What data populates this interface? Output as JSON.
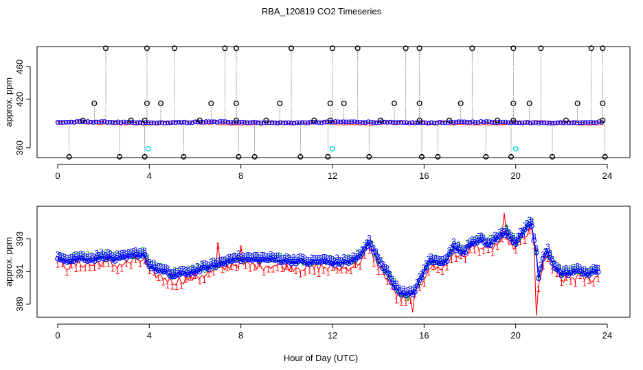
{
  "title": "RBA_120819  CO2 Timeseries",
  "xlabel": "Hour of Day (UTC)",
  "colors": {
    "black": "#000000",
    "red": "#ff0000",
    "green": "#00aa00",
    "blue": "#0000ff",
    "cyan": "#00dddd"
  },
  "chart_data": [
    {
      "type": "scatter",
      "name": "raw-timeseries",
      "ylabel": "approx. ppm",
      "xlim": [
        0,
        24
      ],
      "ylim": [
        348,
        485
      ],
      "x_ticks": [
        0,
        4,
        8,
        12,
        16,
        20,
        24
      ],
      "y_ticks": [
        360,
        420,
        460
      ],
      "y_tick_labels": [
        "360",
        "420",
        "460"
      ],
      "baseline": 391.5,
      "outliers_high": [
        {
          "x": 2.1,
          "y": 483
        },
        {
          "x": 3.9,
          "y": 483
        },
        {
          "x": 5.1,
          "y": 483
        },
        {
          "x": 7.3,
          "y": 483
        },
        {
          "x": 7.8,
          "y": 483
        },
        {
          "x": 10.2,
          "y": 483
        },
        {
          "x": 12.0,
          "y": 483
        },
        {
          "x": 13.1,
          "y": 483
        },
        {
          "x": 15.2,
          "y": 483
        },
        {
          "x": 15.8,
          "y": 483
        },
        {
          "x": 18.1,
          "y": 483
        },
        {
          "x": 19.9,
          "y": 483
        },
        {
          "x": 21.1,
          "y": 483
        },
        {
          "x": 23.3,
          "y": 483
        },
        {
          "x": 23.8,
          "y": 483
        }
      ],
      "outliers_mid": [
        {
          "x": 1.6,
          "y": 415
        },
        {
          "x": 3.9,
          "y": 415
        },
        {
          "x": 4.5,
          "y": 415
        },
        {
          "x": 6.7,
          "y": 415
        },
        {
          "x": 7.8,
          "y": 415
        },
        {
          "x": 9.7,
          "y": 415
        },
        {
          "x": 11.9,
          "y": 415
        },
        {
          "x": 12.5,
          "y": 415
        },
        {
          "x": 14.7,
          "y": 415
        },
        {
          "x": 15.8,
          "y": 415
        },
        {
          "x": 17.6,
          "y": 415
        },
        {
          "x": 19.9,
          "y": 415
        },
        {
          "x": 20.6,
          "y": 415
        },
        {
          "x": 22.7,
          "y": 415
        },
        {
          "x": 23.8,
          "y": 415
        }
      ],
      "outliers_low": [
        {
          "x": 0.5,
          "y": 349
        },
        {
          "x": 2.7,
          "y": 349
        },
        {
          "x": 3.8,
          "y": 349
        },
        {
          "x": 5.5,
          "y": 349
        },
        {
          "x": 7.9,
          "y": 349
        },
        {
          "x": 8.6,
          "y": 349
        },
        {
          "x": 10.6,
          "y": 349
        },
        {
          "x": 11.8,
          "y": 349
        },
        {
          "x": 13.6,
          "y": 349
        },
        {
          "x": 15.9,
          "y": 349
        },
        {
          "x": 16.6,
          "y": 349
        },
        {
          "x": 18.7,
          "y": 349
        },
        {
          "x": 19.8,
          "y": 349
        },
        {
          "x": 21.6,
          "y": 349
        },
        {
          "x": 23.9,
          "y": 349
        }
      ],
      "outliers_near": [
        {
          "x": 1.1,
          "y": 394
        },
        {
          "x": 3.2,
          "y": 394
        },
        {
          "x": 3.8,
          "y": 394
        },
        {
          "x": 6.2,
          "y": 394
        },
        {
          "x": 7.8,
          "y": 394
        },
        {
          "x": 9.1,
          "y": 394
        },
        {
          "x": 11.2,
          "y": 394
        },
        {
          "x": 11.9,
          "y": 394
        },
        {
          "x": 14.1,
          "y": 394
        },
        {
          "x": 15.8,
          "y": 394
        },
        {
          "x": 17.1,
          "y": 394
        },
        {
          "x": 19.2,
          "y": 394
        },
        {
          "x": 19.9,
          "y": 394
        },
        {
          "x": 22.2,
          "y": 394
        },
        {
          "x": 23.8,
          "y": 394
        }
      ],
      "cyan_points": [
        {
          "x": 3.95,
          "y": 359
        },
        {
          "x": 12.0,
          "y": 359
        },
        {
          "x": 20.0,
          "y": 359
        }
      ]
    },
    {
      "type": "line",
      "name": "smoothed-timeseries",
      "ylabel": "approx. ppm",
      "xlim": [
        0,
        24
      ],
      "ylim": [
        388.2,
        395.0
      ],
      "x_ticks": [
        0,
        4,
        8,
        12,
        16,
        20,
        24
      ],
      "y_ticks": [
        389,
        391,
        393
      ],
      "y_tick_labels": [
        "389",
        "391",
        "393"
      ],
      "anchors": [
        [
          0,
          391.8
        ],
        [
          0.5,
          391.5
        ],
        [
          1.0,
          391.7
        ],
        [
          1.5,
          391.6
        ],
        [
          2.0,
          391.8
        ],
        [
          2.5,
          391.6
        ],
        [
          3.0,
          391.7
        ],
        [
          3.5,
          391.9
        ],
        [
          3.8,
          391.9
        ],
        [
          4.0,
          391.2
        ],
        [
          4.3,
          391.0
        ],
        [
          4.7,
          390.8
        ],
        [
          5.0,
          390.6
        ],
        [
          5.4,
          390.7
        ],
        [
          5.8,
          390.8
        ],
        [
          6.3,
          391.0
        ],
        [
          6.8,
          391.2
        ],
        [
          7.3,
          391.4
        ],
        [
          7.7,
          391.7
        ],
        [
          8.0,
          391.6
        ],
        [
          8.5,
          391.6
        ],
        [
          9.0,
          391.6
        ],
        [
          9.5,
          391.6
        ],
        [
          10.0,
          391.5
        ],
        [
          10.5,
          391.5
        ],
        [
          11.0,
          391.4
        ],
        [
          11.5,
          391.5
        ],
        [
          12.0,
          391.4
        ],
        [
          12.5,
          391.4
        ],
        [
          13.0,
          391.6
        ],
        [
          13.3,
          392.0
        ],
        [
          13.6,
          392.6
        ],
        [
          13.9,
          391.8
        ],
        [
          14.2,
          391.2
        ],
        [
          14.5,
          390.5
        ],
        [
          14.8,
          389.8
        ],
        [
          15.2,
          389.4
        ],
        [
          15.5,
          389.5
        ],
        [
          15.9,
          390.5
        ],
        [
          16.2,
          391.5
        ],
        [
          16.6,
          391.4
        ],
        [
          17.0,
          391.6
        ],
        [
          17.3,
          392.4
        ],
        [
          17.7,
          392.0
        ],
        [
          18.0,
          392.6
        ],
        [
          18.4,
          392.8
        ],
        [
          18.8,
          392.5
        ],
        [
          19.2,
          392.9
        ],
        [
          19.6,
          393.3
        ],
        [
          20.0,
          392.6
        ],
        [
          20.3,
          393.2
        ],
        [
          20.5,
          393.5
        ],
        [
          20.7,
          393.7
        ],
        [
          20.9,
          392.0
        ],
        [
          21.0,
          390.5
        ],
        [
          21.2,
          391.6
        ],
        [
          21.4,
          392.1
        ],
        [
          21.7,
          391.2
        ],
        [
          22.0,
          390.7
        ],
        [
          22.4,
          390.8
        ],
        [
          22.8,
          390.9
        ],
        [
          23.2,
          390.7
        ],
        [
          23.6,
          390.9
        ],
        [
          23.8,
          390.9
        ]
      ],
      "series": [
        {
          "name": "1",
          "color": "#ff0000",
          "offset": -0.2,
          "amp": 0.55,
          "dips": [
            [
              15.5,
              388.5
            ],
            [
              20.9,
              388.3
            ]
          ],
          "peaks": [
            [
              19.5,
              394.6
            ],
            [
              7.0,
              392.8
            ],
            [
              8.0,
              392.6
            ]
          ]
        },
        {
          "name": "2",
          "color": "#00aa00",
          "offset": 0.05,
          "amp": 0.3,
          "dips": [
            [
              15.3,
              389.2
            ]
          ],
          "peaks": [
            [
              19.6,
              393.9
            ]
          ]
        },
        {
          "name": "3",
          "color": "#0000ff",
          "offset": 0.1,
          "amp": 0.25,
          "dips": [
            [
              15.4,
              389.7
            ]
          ],
          "peaks": [
            [
              20.6,
              393.9
            ],
            [
              13.6,
              392.8
            ]
          ]
        }
      ]
    }
  ]
}
